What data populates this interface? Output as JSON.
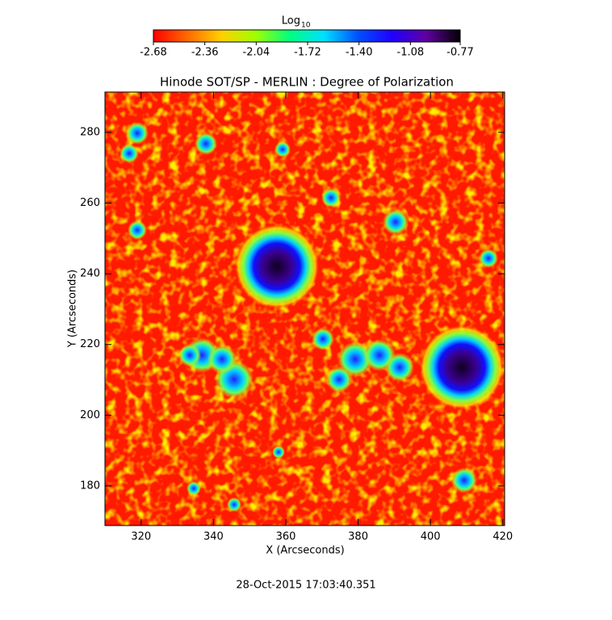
{
  "chart_data": {
    "type": "image",
    "title": "Hinode SOT/SP - MERLIN : Degree of Polarization",
    "x_label": "X (Arcseconds)",
    "y_label": "Y (Arcseconds)",
    "xlim": [
      310,
      420.5
    ],
    "xticks": [
      320,
      340,
      360,
      380,
      400,
      420
    ],
    "ylim": [
      168.8,
      291.4
    ],
    "yticks": [
      180,
      200,
      220,
      240,
      260,
      280
    ],
    "colorbar": {
      "label": "Log",
      "label_subscript": "10",
      "lim": [
        -2.68,
        -0.77
      ],
      "ticks": [
        -2.68,
        -2.36,
        -2.04,
        -1.72,
        {
          "value": -1.4,
          "label": "-1.40"
        },
        -1.08,
        -0.77
      ],
      "colormap": [
        "#ff0000",
        "#ff6a00",
        "#ffd000",
        "#a0ff00",
        "#00ff80",
        "#00e0ff",
        "#0050ff",
        "#2000ff",
        "#6000a0",
        "#000000"
      ]
    },
    "footer": "28-Oct-2015 17:03:40.351"
  }
}
